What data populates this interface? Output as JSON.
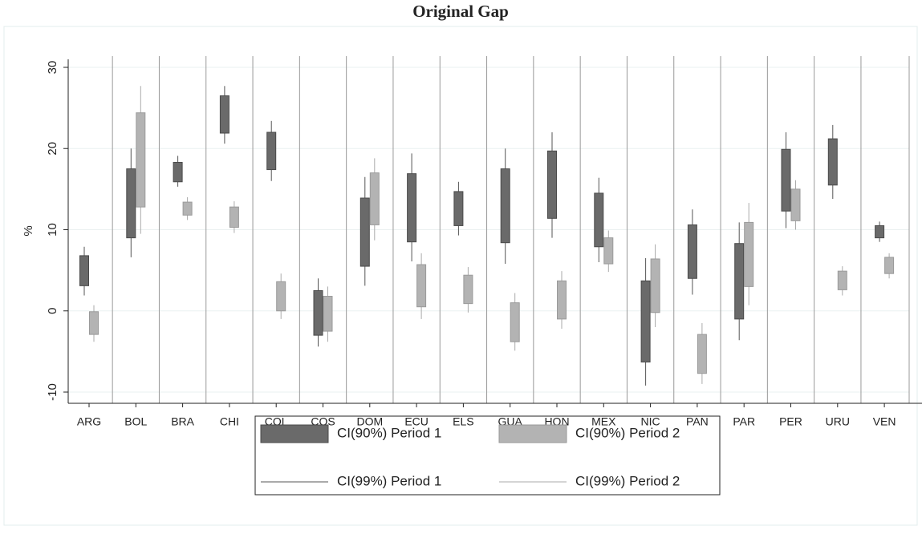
{
  "chart_data": {
    "type": "rangebar",
    "title": "Original Gap",
    "y_label": "%",
    "categories": [
      "ARG",
      "BOL",
      "BRA",
      "CHI",
      "COL",
      "COS",
      "DOM",
      "ECU",
      "ELS",
      "GUA",
      "HON",
      "MEX",
      "NIC",
      "PAN",
      "PAR",
      "PER",
      "URU",
      "VEN"
    ],
    "ylim": [
      -10,
      30
    ],
    "yticks": [
      -10,
      0,
      10,
      20,
      30
    ],
    "grid": true,
    "series": [
      {
        "name": "CI(90%) Period 1",
        "color": "#6a6a6a",
        "period": 1,
        "style": "box",
        "low": [
          3.1,
          9.0,
          15.9,
          21.9,
          17.4,
          -3,
          5.5,
          8.5,
          10.5,
          8.4,
          11.4,
          7.9,
          -6.3,
          4,
          -1,
          12.3,
          15.5,
          9
        ],
        "high": [
          6.8,
          17.5,
          18.3,
          26.5,
          22,
          2.5,
          13.9,
          16.9,
          14.7,
          17.5,
          19.7,
          14.5,
          3.7,
          10.6,
          8.3,
          19.9,
          21.2,
          10.5
        ]
      },
      {
        "name": "CI(90%) Period 2",
        "color": "#b3b3b3",
        "period": 2,
        "style": "box",
        "low": [
          -2.9,
          12.8,
          11.8,
          10.3,
          0,
          -2.5,
          10.6,
          0.5,
          0.9,
          -3.8,
          -1,
          5.8,
          -0.2,
          -7.7,
          3,
          11.1,
          2.6,
          4.6
        ],
        "high": [
          -0.1,
          24.4,
          13.4,
          12.8,
          3.6,
          1.8,
          17,
          5.7,
          4.4,
          1,
          3.7,
          9,
          6.4,
          -2.9,
          10.9,
          15,
          4.9,
          6.6
        ]
      },
      {
        "name": "CI(99%) Period 1",
        "color": "#555555",
        "period": 1,
        "style": "line",
        "low": [
          1.9,
          6.6,
          15.3,
          20.6,
          16,
          -4.4,
          3.1,
          6.1,
          9.3,
          5.8,
          9,
          6,
          -9.2,
          2,
          -3.6,
          10.2,
          13.8,
          8.5
        ],
        "high": [
          7.9,
          20,
          19.1,
          27.7,
          23.4,
          4,
          16.5,
          19.4,
          15.9,
          20,
          22,
          16.4,
          6.5,
          12.5,
          10.9,
          22,
          22.9,
          11
        ]
      },
      {
        "name": "CI(99%) Period 2",
        "color": "#aaaaaa",
        "period": 2,
        "style": "line",
        "low": [
          -3.8,
          9.5,
          11.2,
          9.6,
          -1,
          -3.8,
          8.7,
          -1,
          -0.2,
          -4.9,
          -2.2,
          4.8,
          -2,
          -9,
          0.7,
          10,
          1.9,
          4
        ],
        "high": [
          0.7,
          27.7,
          14,
          13.5,
          4.6,
          3,
          18.8,
          7.1,
          5.4,
          2.2,
          4.9,
          9.9,
          8.2,
          -1.5,
          13.3,
          16.1,
          5.5,
          7.1
        ]
      }
    ]
  }
}
